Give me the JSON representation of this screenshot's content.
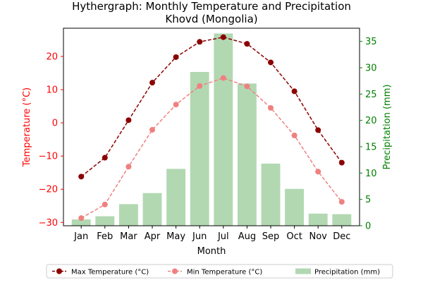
{
  "chart_data": {
    "type": "bar+line",
    "title": "Hythergraph: Monthly Temperature and Precipitation",
    "subtitle": "Khovd (Mongolia)",
    "xlabel": "Month",
    "ylabel_left": "Temperature (°C)",
    "ylabel_right": "Precipitation (mm)",
    "ylim_left": [
      -31,
      28.5
    ],
    "ylim_right": [
      0,
      37.5
    ],
    "yticks_left": [
      -30,
      -20,
      -10,
      0,
      10,
      20
    ],
    "yticks_right": [
      0,
      5,
      10,
      15,
      20,
      25,
      30,
      35
    ],
    "categories": [
      "Jan",
      "Feb",
      "Mar",
      "Apr",
      "May",
      "Jun",
      "Jul",
      "Aug",
      "Sep",
      "Oct",
      "Nov",
      "Dec"
    ],
    "series": [
      {
        "name": "Max Temperature (°C)",
        "type": "line",
        "axis": "left",
        "color": "#8b0000",
        "values": [
          -16.2,
          -10.5,
          0.8,
          12.1,
          19.8,
          24.4,
          25.8,
          23.8,
          18.2,
          9.5,
          -2.2,
          -12.0
        ]
      },
      {
        "name": "Min Temperature (°C)",
        "type": "line",
        "axis": "left",
        "color": "#f08080",
        "values": [
          -28.7,
          -24.6,
          -13.2,
          -2.1,
          5.5,
          11.1,
          13.5,
          11.0,
          4.5,
          -3.8,
          -14.7,
          -23.8
        ]
      },
      {
        "name": "Precipitation (mm)",
        "type": "bar",
        "axis": "right",
        "color": "#b2d8b2",
        "values": [
          1.2,
          1.8,
          4.1,
          6.2,
          10.8,
          29.2,
          36.5,
          27.0,
          11.8,
          7.0,
          2.3,
          2.2
        ]
      }
    ],
    "legend": {
      "placement": "bottom-center",
      "items": [
        "Max Temperature (°C)",
        "Min Temperature (°C)",
        "Precipitation (mm)"
      ]
    },
    "colors": {
      "left_axis": "#ff0000",
      "right_axis": "#008000",
      "text": "#000000"
    },
    "grid": false
  }
}
